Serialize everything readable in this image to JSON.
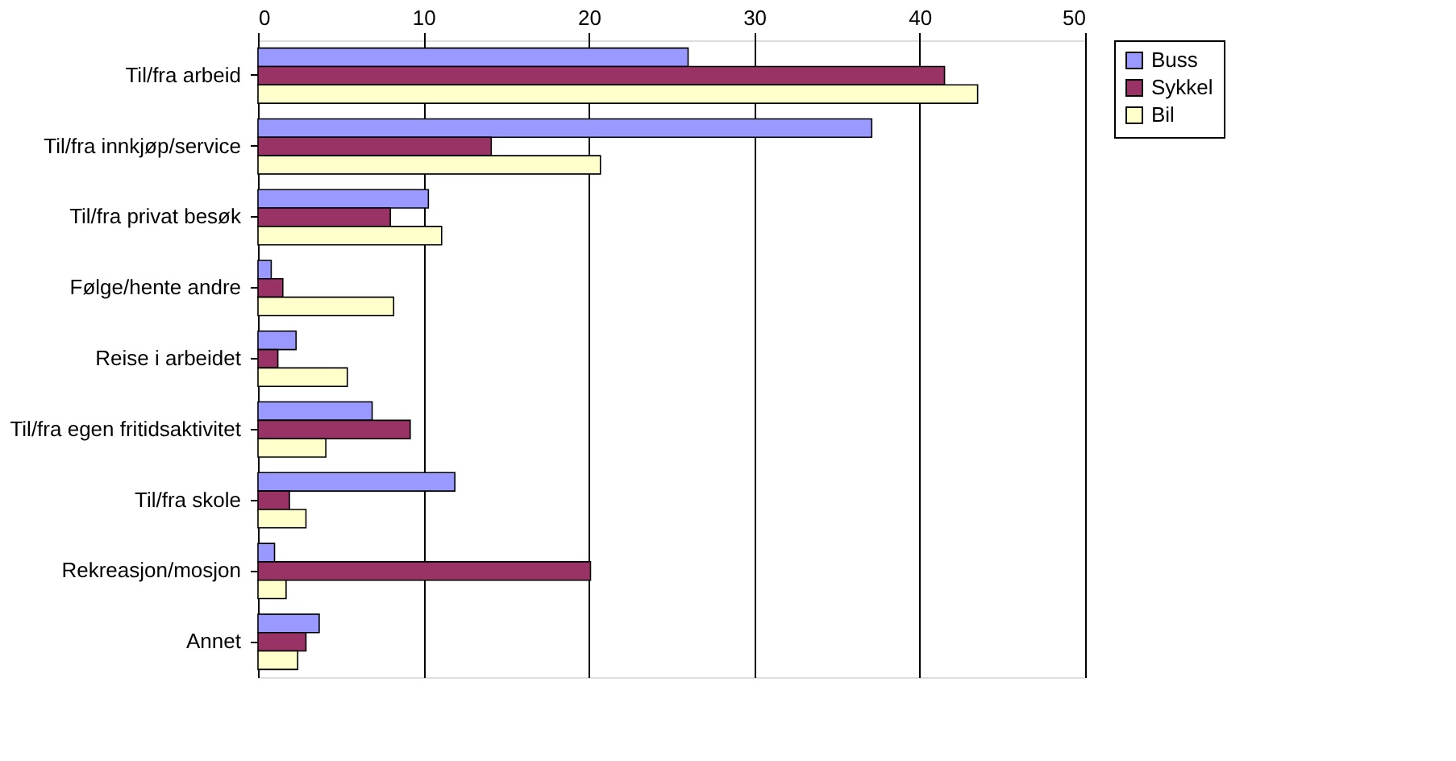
{
  "chart_data": {
    "type": "bar",
    "orientation": "horizontal",
    "categories": [
      "Til/fra arbeid",
      "Til/fra innkjøp/service",
      "Til/fra privat besøk",
      "Følge/hente andre",
      "Reise i arbeidet",
      "Til/fra egen fritidsaktivitet",
      "Til/fra skole",
      "Rekreasjon/mosjon",
      "Annet"
    ],
    "series": [
      {
        "name": "Buss",
        "color": "#9999ff",
        "values": [
          26.0,
          37.1,
          10.3,
          0.8,
          2.3,
          6.9,
          11.9,
          1.0,
          3.7
        ]
      },
      {
        "name": "Sykkel",
        "color": "#993366",
        "values": [
          41.5,
          14.1,
          8.0,
          1.5,
          1.2,
          9.2,
          1.9,
          20.1,
          2.9
        ]
      },
      {
        "name": "Bil",
        "color": "#ffffcc",
        "values": [
          43.5,
          20.7,
          11.1,
          8.2,
          5.4,
          4.1,
          2.9,
          1.7,
          2.4
        ]
      }
    ],
    "xlim": [
      0,
      50
    ],
    "xticks": [
      0,
      10,
      20,
      30,
      40,
      50
    ],
    "grid": "x",
    "legend": "right"
  }
}
